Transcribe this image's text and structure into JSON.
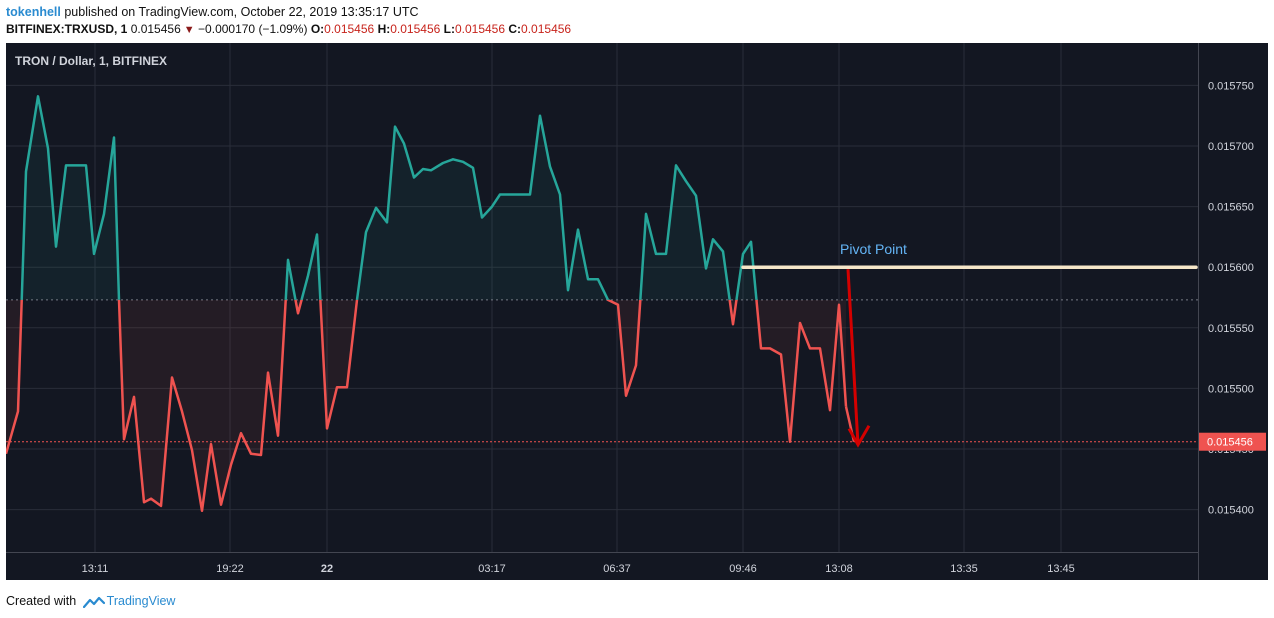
{
  "header": {
    "author": "tokenhell",
    "published_text": "published on TradingView.com, October 22, 2019 13:35:17 UTC",
    "symbol": "BITFINEX:TRXUSD, 1",
    "last_price": "0.015456",
    "change": "−0.000170 (−1.09%)",
    "o_label": "O:",
    "o_value": "0.015456",
    "h_label": "H:",
    "h_value": "0.015456",
    "l_label": "L:",
    "l_value": "0.015456",
    "c_label": "C:",
    "c_value": "0.015456"
  },
  "chart": {
    "title": "TRON / Dollar, 1, BITFINEX",
    "annotation": "Pivot Point",
    "current_price_label": "0.015456"
  },
  "footer": {
    "created_with": "Created with",
    "brand": "TradingView"
  },
  "colors": {
    "background": "#131722",
    "grid": "#2a2e39",
    "up_line": "#26a69a",
    "down_line": "#ef5350",
    "pivot_line": "#f5e6c8",
    "arrow": "#d40000",
    "annotation_text": "#64b5f6",
    "axis_text": "#d1d4dc",
    "price_tag": "#ef5350"
  },
  "chart_data": {
    "type": "line",
    "title": "TRON / Dollar, 1, BITFINEX",
    "xlabel": "",
    "ylabel": "",
    "baseline": 0.015573,
    "current_price": 0.015456,
    "pivot_level": 0.0156,
    "ylim": [
      0.015365,
      0.015785
    ],
    "yticks": [
      0.0154,
      0.01545,
      0.0155,
      0.01555,
      0.0156,
      0.01565,
      0.0157,
      0.01575
    ],
    "ytick_labels": [
      "0.015400",
      "0.015450",
      "0.015500",
      "0.015550",
      "0.015600",
      "0.015650",
      "0.015700",
      "0.015750"
    ],
    "xlim": [
      0,
      1192
    ],
    "xticks": [
      {
        "label": "13:11",
        "x": 89
      },
      {
        "label": "19:22",
        "x": 224
      },
      {
        "label": "22",
        "x": 321
      },
      {
        "label": "03:17",
        "x": 486
      },
      {
        "label": "06:37",
        "x": 611
      },
      {
        "label": "09:46",
        "x": 737
      },
      {
        "label": "13:08",
        "x": 833
      },
      {
        "label": "13:35",
        "x": 958
      },
      {
        "label": "13:45",
        "x": 1055
      }
    ],
    "series": [
      {
        "x": [
          0,
          12,
          20,
          32,
          42,
          50,
          60,
          70,
          80,
          88,
          98,
          108,
          113,
          118,
          128,
          138,
          145,
          155,
          166,
          176,
          186,
          196,
          205,
          215,
          225,
          235,
          245,
          255,
          262,
          272,
          282,
          292,
          302,
          311,
          321,
          331,
          341,
          351,
          360,
          370,
          381,
          389,
          398,
          408,
          417,
          425,
          437,
          447,
          457,
          467,
          476,
          486,
          494,
          504,
          514,
          524,
          534,
          544,
          554,
          562,
          572,
          582,
          592,
          602,
          612,
          620,
          630,
          640,
          650,
          660,
          670,
          680,
          690,
          700,
          707,
          717,
          727,
          737,
          745,
          755,
          764,
          775,
          784,
          794,
          804,
          814,
          824,
          833,
          840
        ],
        "y": [
          0.015446,
          0.015481,
          0.015679,
          0.015741,
          0.015698,
          0.015617,
          0.015684,
          0.015684,
          0.015684,
          0.015611,
          0.015644,
          0.015707,
          0.015573,
          0.015458,
          0.015493,
          0.015406,
          0.015409,
          0.015403,
          0.015509,
          0.015481,
          0.015449,
          0.015399,
          0.015454,
          0.015404,
          0.015437,
          0.015463,
          0.015446,
          0.015445,
          0.015513,
          0.015461,
          0.015606,
          0.015562,
          0.015593,
          0.015627,
          0.015467,
          0.015501,
          0.015501,
          0.015573,
          0.015629,
          0.015649,
          0.015637,
          0.015716,
          0.015702,
          0.015674,
          0.015681,
          0.01568,
          0.015686,
          0.015689,
          0.015687,
          0.015682,
          0.015641,
          0.01565,
          0.01566,
          0.01566,
          0.01566,
          0.01566,
          0.015725,
          0.015683,
          0.01566,
          0.015581,
          0.015631,
          0.01559,
          0.01559,
          0.015573,
          0.015569,
          0.015494,
          0.015519,
          0.015644,
          0.015611,
          0.015611,
          0.015684,
          0.015671,
          0.015659,
          0.015599,
          0.015623,
          0.015613,
          0.015553,
          0.015611,
          0.015621,
          0.015533,
          0.015533,
          0.015528,
          0.015456,
          0.015554,
          0.015533,
          0.015533,
          0.015482,
          0.015569,
          0.015485
        ]
      },
      {
        "x": [
          840,
          848
        ],
        "y": [
          0.015485,
          0.015456
        ]
      }
    ]
  }
}
